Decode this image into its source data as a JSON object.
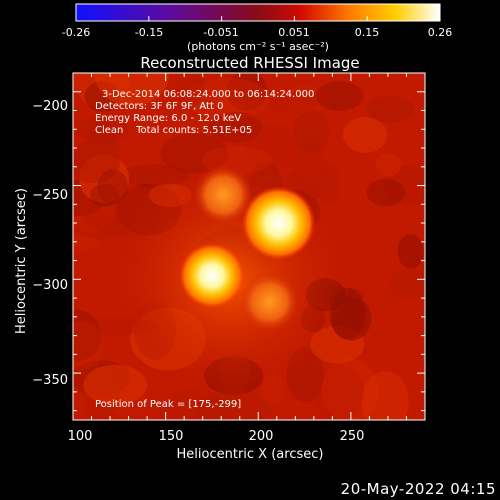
{
  "colorbar": {
    "ticks": [
      "-0.26",
      "-0.15",
      "-0.051",
      "0.051",
      "0.15",
      "0.26"
    ],
    "unit_label": "(photons cm⁻² s⁻¹ asec⁻²)",
    "range": [
      -0.26,
      0.26
    ],
    "colors": [
      "#1010ff",
      "#5a0aa0",
      "#8a0a18",
      "#d40b00",
      "#ff7a00",
      "#ffd000",
      "#ffffff"
    ]
  },
  "chart_data": {
    "type": "heatmap",
    "title": "Reconstructed RHESSI Image",
    "xlabel": "Heliocentric X (arcsec)",
    "ylabel": "Heliocentric Y (arcsec)",
    "xlim": [
      100,
      290
    ],
    "ylim": [
      -375,
      -190
    ],
    "xticks": [
      100,
      150,
      200,
      250
    ],
    "yticks": [
      -200,
      -250,
      -300,
      -350
    ],
    "xtick_labels": [
      "100",
      "150",
      "200",
      "250"
    ],
    "ytick_labels": [
      "−200",
      "−250",
      "−300",
      "−350"
    ],
    "background_color": "#c21a00",
    "sources": [
      {
        "x": 175,
        "y": -298,
        "peak": 1.0,
        "size": 8
      },
      {
        "x": 211,
        "y": -270,
        "peak": 0.95,
        "size": 9
      },
      {
        "x": 181,
        "y": -255,
        "peak": 0.35,
        "size": 8
      },
      {
        "x": 206,
        "y": -312,
        "peak": 0.3,
        "size": 8
      }
    ],
    "annotations": [
      "3-Dec-2014 06:08:24.000 to 06:14:24.000",
      "Detectors: 3F 6F 9F, Att 0",
      "Energy Range: 6.0 - 12.0 keV",
      "Clean    Total counts: 5.51E+05"
    ],
    "peak_label": "Position of Peak = [175,-299]"
  },
  "footer": {
    "timestamp": "20-May-2022 04:15"
  }
}
